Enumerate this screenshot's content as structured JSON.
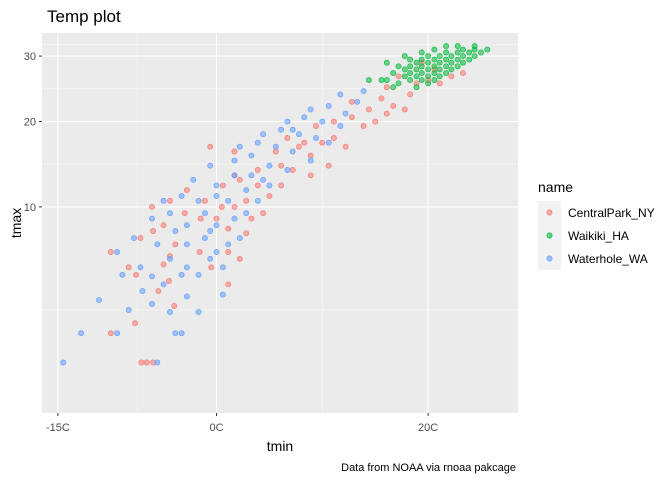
{
  "chart_data": {
    "type": "scatter",
    "title": "Temp plot",
    "xlabel": "tmin",
    "ylabel": "tmax",
    "caption": "Data from NOAA via rnoaa pakcage",
    "x_ticks": [
      {
        "value": -15,
        "label": "-15C"
      },
      {
        "value": 0,
        "label": "0C"
      },
      {
        "value": 20,
        "label": "20C"
      }
    ],
    "y_ticks": [
      {
        "value": 10,
        "label": "10"
      },
      {
        "value": 20,
        "label": "20"
      },
      {
        "value": 30,
        "label": "30"
      }
    ],
    "y_scale": "sqrt",
    "xlim": [
      -16.5,
      28.5
    ],
    "ylim": [
      0,
      34
    ],
    "grid": true,
    "legend": {
      "title": "name",
      "position": "right"
    },
    "series": [
      {
        "name": "CentralPark_NY",
        "color": "#F8766D",
        "points": [
          [
            -7.1,
            0.6
          ],
          [
            -6.6,
            0.6
          ],
          [
            -6.0,
            0.6
          ],
          [
            -10.0,
            1.5
          ],
          [
            -7.7,
            1.9
          ],
          [
            -4.5,
            4.1
          ],
          [
            -4.0,
            2.7
          ],
          [
            -5.5,
            3.5
          ],
          [
            -10.0,
            6.1
          ],
          [
            -7.6,
            4.5
          ],
          [
            -5.0,
            5.2
          ],
          [
            -4.4,
            5.8
          ],
          [
            -6.0,
            7.8
          ],
          [
            -3.9,
            6.7
          ],
          [
            -1.6,
            6.1
          ],
          [
            -0.5,
            5.0
          ],
          [
            1.1,
            6.1
          ],
          [
            2.2,
            5.6
          ],
          [
            -7.2,
            7.2
          ],
          [
            -5.0,
            8.3
          ],
          [
            -3.0,
            9.4
          ],
          [
            -1.5,
            8.9
          ],
          [
            0.0,
            8.9
          ],
          [
            1.1,
            8.0
          ],
          [
            2.8,
            7.6
          ],
          [
            3.3,
            8.9
          ],
          [
            -6.1,
            10.0
          ],
          [
            -4.4,
            10.6
          ],
          [
            -1.1,
            10.6
          ],
          [
            0.5,
            10.0
          ],
          [
            1.7,
            10.0
          ],
          [
            2.8,
            10.6
          ],
          [
            0.6,
            12.2
          ],
          [
            2.2,
            12.8
          ],
          [
            3.9,
            12.2
          ],
          [
            5.0,
            11.1
          ],
          [
            6.1,
            12.2
          ],
          [
            1.7,
            13.3
          ],
          [
            3.9,
            13.9
          ],
          [
            6.1,
            14.4
          ],
          [
            -0.6,
            16.7
          ],
          [
            1.7,
            16.1
          ],
          [
            5.6,
            16.1
          ],
          [
            7.8,
            16.7
          ],
          [
            8.9,
            15.6
          ],
          [
            10.6,
            14.4
          ],
          [
            6.7,
            17.8
          ],
          [
            8.3,
            17.2
          ],
          [
            10.0,
            17.2
          ],
          [
            11.1,
            17.8
          ],
          [
            12.2,
            16.7
          ],
          [
            9.4,
            19.4
          ],
          [
            11.1,
            20.0
          ],
          [
            12.8,
            20.6
          ],
          [
            13.9,
            19.4
          ],
          [
            15.0,
            20.0
          ],
          [
            14.4,
            21.7
          ],
          [
            16.1,
            21.1
          ],
          [
            16.7,
            22.2
          ],
          [
            17.8,
            21.7
          ],
          [
            12.8,
            22.8
          ],
          [
            15.6,
            23.3
          ],
          [
            18.3,
            23.9
          ],
          [
            16.1,
            25.0
          ],
          [
            18.9,
            25.6
          ],
          [
            20.0,
            26.1
          ],
          [
            21.1,
            25.6
          ],
          [
            17.2,
            26.7
          ],
          [
            20.6,
            27.8
          ],
          [
            22.2,
            26.7
          ],
          [
            19.4,
            28.9
          ],
          [
            23.3,
            27.2
          ],
          [
            8.9,
            13.3
          ],
          [
            -8.3,
            5.0
          ],
          [
            1.1,
            3.9
          ],
          [
            4.4,
            9.4
          ],
          [
            -2.8,
            11.7
          ],
          [
            7.2,
            13.9
          ]
        ]
      },
      {
        "name": "Waikiki_HA",
        "color": "#00BA38",
        "points": [
          [
            16.1,
            26.1
          ],
          [
            16.7,
            27.2
          ],
          [
            17.2,
            25.6
          ],
          [
            17.8,
            26.7
          ],
          [
            17.8,
            27.8
          ],
          [
            18.3,
            26.1
          ],
          [
            18.3,
            27.2
          ],
          [
            18.3,
            28.3
          ],
          [
            18.9,
            25.0
          ],
          [
            18.9,
            26.7
          ],
          [
            18.9,
            27.8
          ],
          [
            18.9,
            28.9
          ],
          [
            19.4,
            26.1
          ],
          [
            19.4,
            27.2
          ],
          [
            19.4,
            28.3
          ],
          [
            19.4,
            29.4
          ],
          [
            20.0,
            25.6
          ],
          [
            20.0,
            26.7
          ],
          [
            20.0,
            27.8
          ],
          [
            20.0,
            28.9
          ],
          [
            20.0,
            30.0
          ],
          [
            20.6,
            26.1
          ],
          [
            20.6,
            27.2
          ],
          [
            20.6,
            28.3
          ],
          [
            20.6,
            29.4
          ],
          [
            21.1,
            26.7
          ],
          [
            21.1,
            27.8
          ],
          [
            21.1,
            28.9
          ],
          [
            21.1,
            30.0
          ],
          [
            21.7,
            27.2
          ],
          [
            21.7,
            28.3
          ],
          [
            21.7,
            29.4
          ],
          [
            21.7,
            30.6
          ],
          [
            22.2,
            27.8
          ],
          [
            22.2,
            28.9
          ],
          [
            22.2,
            30.0
          ],
          [
            22.8,
            28.3
          ],
          [
            22.8,
            29.4
          ],
          [
            22.8,
            30.6
          ],
          [
            23.3,
            28.9
          ],
          [
            23.3,
            30.0
          ],
          [
            23.3,
            31.1
          ],
          [
            23.9,
            29.4
          ],
          [
            23.9,
            30.6
          ],
          [
            24.4,
            30.0
          ],
          [
            24.4,
            31.1
          ],
          [
            25.0,
            30.6
          ],
          [
            25.6,
            31.1
          ],
          [
            16.7,
            25.0
          ],
          [
            17.2,
            28.3
          ],
          [
            18.3,
            29.4
          ],
          [
            19.4,
            30.6
          ],
          [
            20.6,
            31.1
          ],
          [
            21.7,
            31.7
          ],
          [
            22.8,
            31.7
          ],
          [
            15.6,
            26.1
          ],
          [
            14.4,
            26.1
          ],
          [
            16.1,
            28.9
          ],
          [
            17.8,
            30.0
          ],
          [
            24.4,
            31.7
          ]
        ]
      },
      {
        "name": "Waterhole_WA",
        "color": "#619CFF",
        "points": [
          [
            -14.5,
            0.6
          ],
          [
            -12.8,
            1.5
          ],
          [
            -11.1,
            3.0
          ],
          [
            -9.4,
            1.5
          ],
          [
            -8.3,
            2.5
          ],
          [
            -5.6,
            0.6
          ],
          [
            -3.9,
            1.5
          ],
          [
            -3.3,
            1.5
          ],
          [
            -7.0,
            3.5
          ],
          [
            -6.1,
            2.8
          ],
          [
            -4.4,
            2.4
          ],
          [
            -2.8,
            3.2
          ],
          [
            -1.7,
            2.4
          ],
          [
            -8.9,
            4.5
          ],
          [
            -7.2,
            5.0
          ],
          [
            -6.1,
            4.4
          ],
          [
            -4.4,
            5.6
          ],
          [
            -2.8,
            5.0
          ],
          [
            -1.7,
            4.5
          ],
          [
            -0.6,
            5.6
          ],
          [
            0.6,
            5.0
          ],
          [
            -7.8,
            7.2
          ],
          [
            -5.6,
            6.7
          ],
          [
            -3.9,
            7.8
          ],
          [
            -2.8,
            6.7
          ],
          [
            -1.1,
            7.2
          ],
          [
            0.0,
            6.1
          ],
          [
            1.1,
            6.7
          ],
          [
            2.2,
            7.2
          ],
          [
            -6.1,
            8.9
          ],
          [
            -4.4,
            9.4
          ],
          [
            -2.8,
            8.3
          ],
          [
            -1.1,
            9.4
          ],
          [
            0.0,
            8.3
          ],
          [
            1.7,
            8.9
          ],
          [
            2.8,
            9.4
          ],
          [
            -5.0,
            10.6
          ],
          [
            -3.3,
            11.1
          ],
          [
            -1.7,
            10.6
          ],
          [
            0.0,
            11.1
          ],
          [
            1.1,
            10.6
          ],
          [
            2.8,
            11.7
          ],
          [
            3.9,
            10.6
          ],
          [
            -2.2,
            12.8
          ],
          [
            0.0,
            12.2
          ],
          [
            1.7,
            13.3
          ],
          [
            3.3,
            13.3
          ],
          [
            5.0,
            12.2
          ],
          [
            -0.6,
            14.4
          ],
          [
            1.7,
            15.0
          ],
          [
            3.3,
            15.6
          ],
          [
            5.0,
            14.4
          ],
          [
            6.7,
            13.9
          ],
          [
            2.2,
            16.7
          ],
          [
            3.9,
            17.2
          ],
          [
            5.6,
            16.7
          ],
          [
            7.2,
            16.1
          ],
          [
            8.9,
            15.0
          ],
          [
            4.4,
            18.3
          ],
          [
            6.1,
            18.9
          ],
          [
            7.8,
            18.3
          ],
          [
            9.4,
            17.8
          ],
          [
            10.6,
            17.2
          ],
          [
            6.7,
            20.0
          ],
          [
            8.3,
            20.6
          ],
          [
            10.0,
            20.0
          ],
          [
            11.7,
            19.4
          ],
          [
            8.9,
            21.7
          ],
          [
            10.6,
            22.2
          ],
          [
            12.2,
            21.1
          ],
          [
            13.3,
            22.8
          ],
          [
            11.7,
            23.9
          ],
          [
            13.9,
            24.4
          ],
          [
            -5.0,
            3.9
          ],
          [
            -9.4,
            6.1
          ],
          [
            -3.3,
            4.5
          ],
          [
            0.6,
            3.3
          ],
          [
            -0.6,
            7.8
          ],
          [
            4.4,
            12.8
          ],
          [
            7.2,
            18.9
          ]
        ]
      }
    ]
  }
}
